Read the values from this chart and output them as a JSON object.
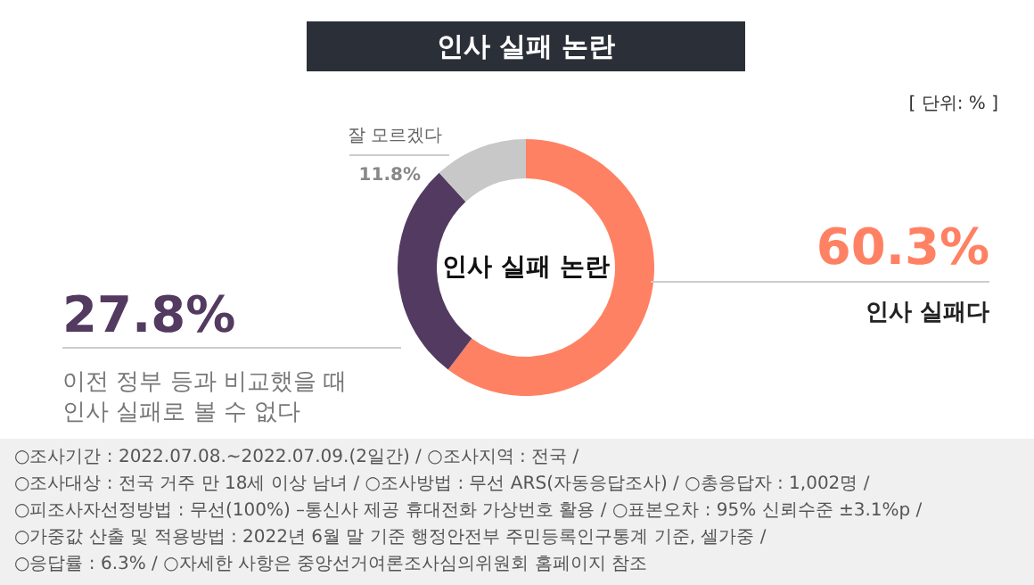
{
  "chart_data": {
    "type": "donut",
    "title": "인사 실패 논란",
    "categories": [
      "인사 실패다",
      "이전 정부 등과 비교했을 때\n인사 실패로 볼 수 없다",
      "잘 모르겠다"
    ],
    "values": [
      60.3,
      27.8,
      11.8
    ],
    "colors": [
      "#ff8163",
      "#533a60",
      "#c8c8c8"
    ],
    "value_labels": [
      "60.3%",
      "27.8%",
      "11.8%"
    ],
    "annotations": [
      "인사 실패 논란",
      "[ 단위: % ]",
      "○조사기간 : 2022.07.08.~2022.07.09.(2일간) / ○조사지역 : 전국 /",
      "○조사대상 : 전국 거주 만 18세 이상 남녀 / ○조사방법 : 무선 ARS(자동응답조사) / ○총응답자 : 1,002명 /",
      "○피조사자선정방법 : 무선(100%) –통신사 제공 휴대전화 가상번호 활용 / ○표본오차 : 95% 신뢰수준 ±3.1%p /",
      "○가중값 산출 및 적용방법 : 2022년 6월 말 기준 행정안전부 주민등록인구통계 기준, 셀가중 /",
      "○응답률 : 6.3% / ○자세한 사항은 중앙선거여론조사심의위원회 홈페이지 참조"
    ]
  }
}
